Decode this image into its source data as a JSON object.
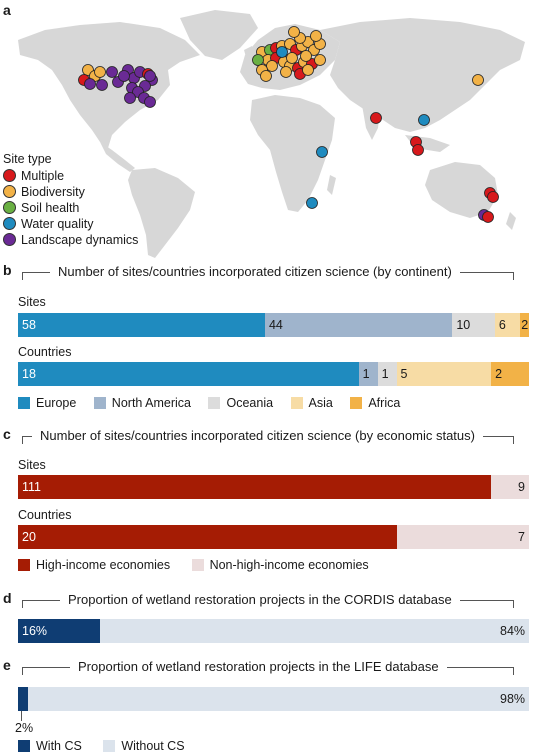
{
  "panel_a": {
    "label": "a",
    "legend_title": "Site type",
    "legend": [
      {
        "name": "Multiple",
        "color": "#d7191c"
      },
      {
        "name": "Biodiversity",
        "color": "#f2b247"
      },
      {
        "name": "Soil health",
        "color": "#6ab043"
      },
      {
        "name": "Water quality",
        "color": "#1f8bbf"
      },
      {
        "name": "Landscape dynamics",
        "color": "#6a2a95"
      }
    ]
  },
  "panel_b": {
    "label": "b",
    "title": "Number of sites/countries incorporated citizen science (by continent)",
    "rows": [
      {
        "label": "Sites",
        "values": [
          58,
          44,
          10,
          6,
          2
        ]
      },
      {
        "label": "Countries",
        "values": [
          18,
          1,
          1,
          5,
          2
        ]
      }
    ],
    "legend": [
      {
        "name": "Europe",
        "color": "#1f8bbf"
      },
      {
        "name": "North America",
        "color": "#9fb4cc"
      },
      {
        "name": "Oceania",
        "color": "#dcdcdc"
      },
      {
        "name": "Asia",
        "color": "#f7dca5"
      },
      {
        "name": "Africa",
        "color": "#f2b247"
      }
    ]
  },
  "panel_c": {
    "label": "c",
    "title": "Number of sites/countries incorporated citizen science (by economic status)",
    "rows": [
      {
        "label": "Sites",
        "values": [
          111,
          9
        ]
      },
      {
        "label": "Countries",
        "values": [
          20,
          7
        ]
      }
    ],
    "legend": [
      {
        "name": "High-income economies",
        "color": "#a51c04"
      },
      {
        "name": "Non-high-income economies",
        "color": "#ebdcdc"
      }
    ]
  },
  "panel_d": {
    "label": "d",
    "title": "Proportion of wetland restoration projects in the CORDIS database",
    "values_text": [
      "16%",
      "84%"
    ],
    "values": [
      16,
      84
    ]
  },
  "panel_e": {
    "label": "e",
    "title": "Proportion of wetland restoration projects in the LIFE database",
    "values_text": [
      "2%",
      "98%"
    ],
    "values": [
      2,
      98
    ],
    "legend": [
      {
        "name": "With CS",
        "color": "#0f3d73"
      },
      {
        "name": "Without CS",
        "color": "#dbe3ec"
      }
    ]
  },
  "chart_data": [
    {
      "type": "scatter",
      "title": "",
      "series": [
        {
          "name": "Multiple"
        },
        {
          "name": "Biodiversity"
        },
        {
          "name": "Soil health"
        },
        {
          "name": "Water quality"
        },
        {
          "name": "Landscape dynamics"
        }
      ]
    },
    {
      "type": "bar",
      "title": "Number of sites/countries incorporated citizen science (by continent)",
      "categories": [
        "Sites",
        "Countries"
      ],
      "series": [
        {
          "name": "Europe",
          "values": [
            58,
            18
          ]
        },
        {
          "name": "North America",
          "values": [
            44,
            1
          ]
        },
        {
          "name": "Oceania",
          "values": [
            10,
            1
          ]
        },
        {
          "name": "Asia",
          "values": [
            6,
            5
          ]
        },
        {
          "name": "Africa",
          "values": [
            2,
            2
          ]
        }
      ]
    },
    {
      "type": "bar",
      "title": "Number of sites/countries incorporated citizen science (by economic status)",
      "categories": [
        "Sites",
        "Countries"
      ],
      "series": [
        {
          "name": "High-income economies",
          "values": [
            111,
            20
          ]
        },
        {
          "name": "Non-high-income economies",
          "values": [
            9,
            7
          ]
        }
      ]
    },
    {
      "type": "bar",
      "title": "Proportion of wetland restoration projects in the CORDIS database",
      "categories": [
        "CORDIS"
      ],
      "series": [
        {
          "name": "With CS",
          "values": [
            16
          ]
        },
        {
          "name": "Without CS",
          "values": [
            84
          ]
        }
      ]
    },
    {
      "type": "bar",
      "title": "Proportion of wetland restoration projects in the LIFE database",
      "categories": [
        "LIFE"
      ],
      "series": [
        {
          "name": "With CS",
          "values": [
            2
          ]
        },
        {
          "name": "Without CS",
          "values": [
            98
          ]
        }
      ]
    }
  ]
}
